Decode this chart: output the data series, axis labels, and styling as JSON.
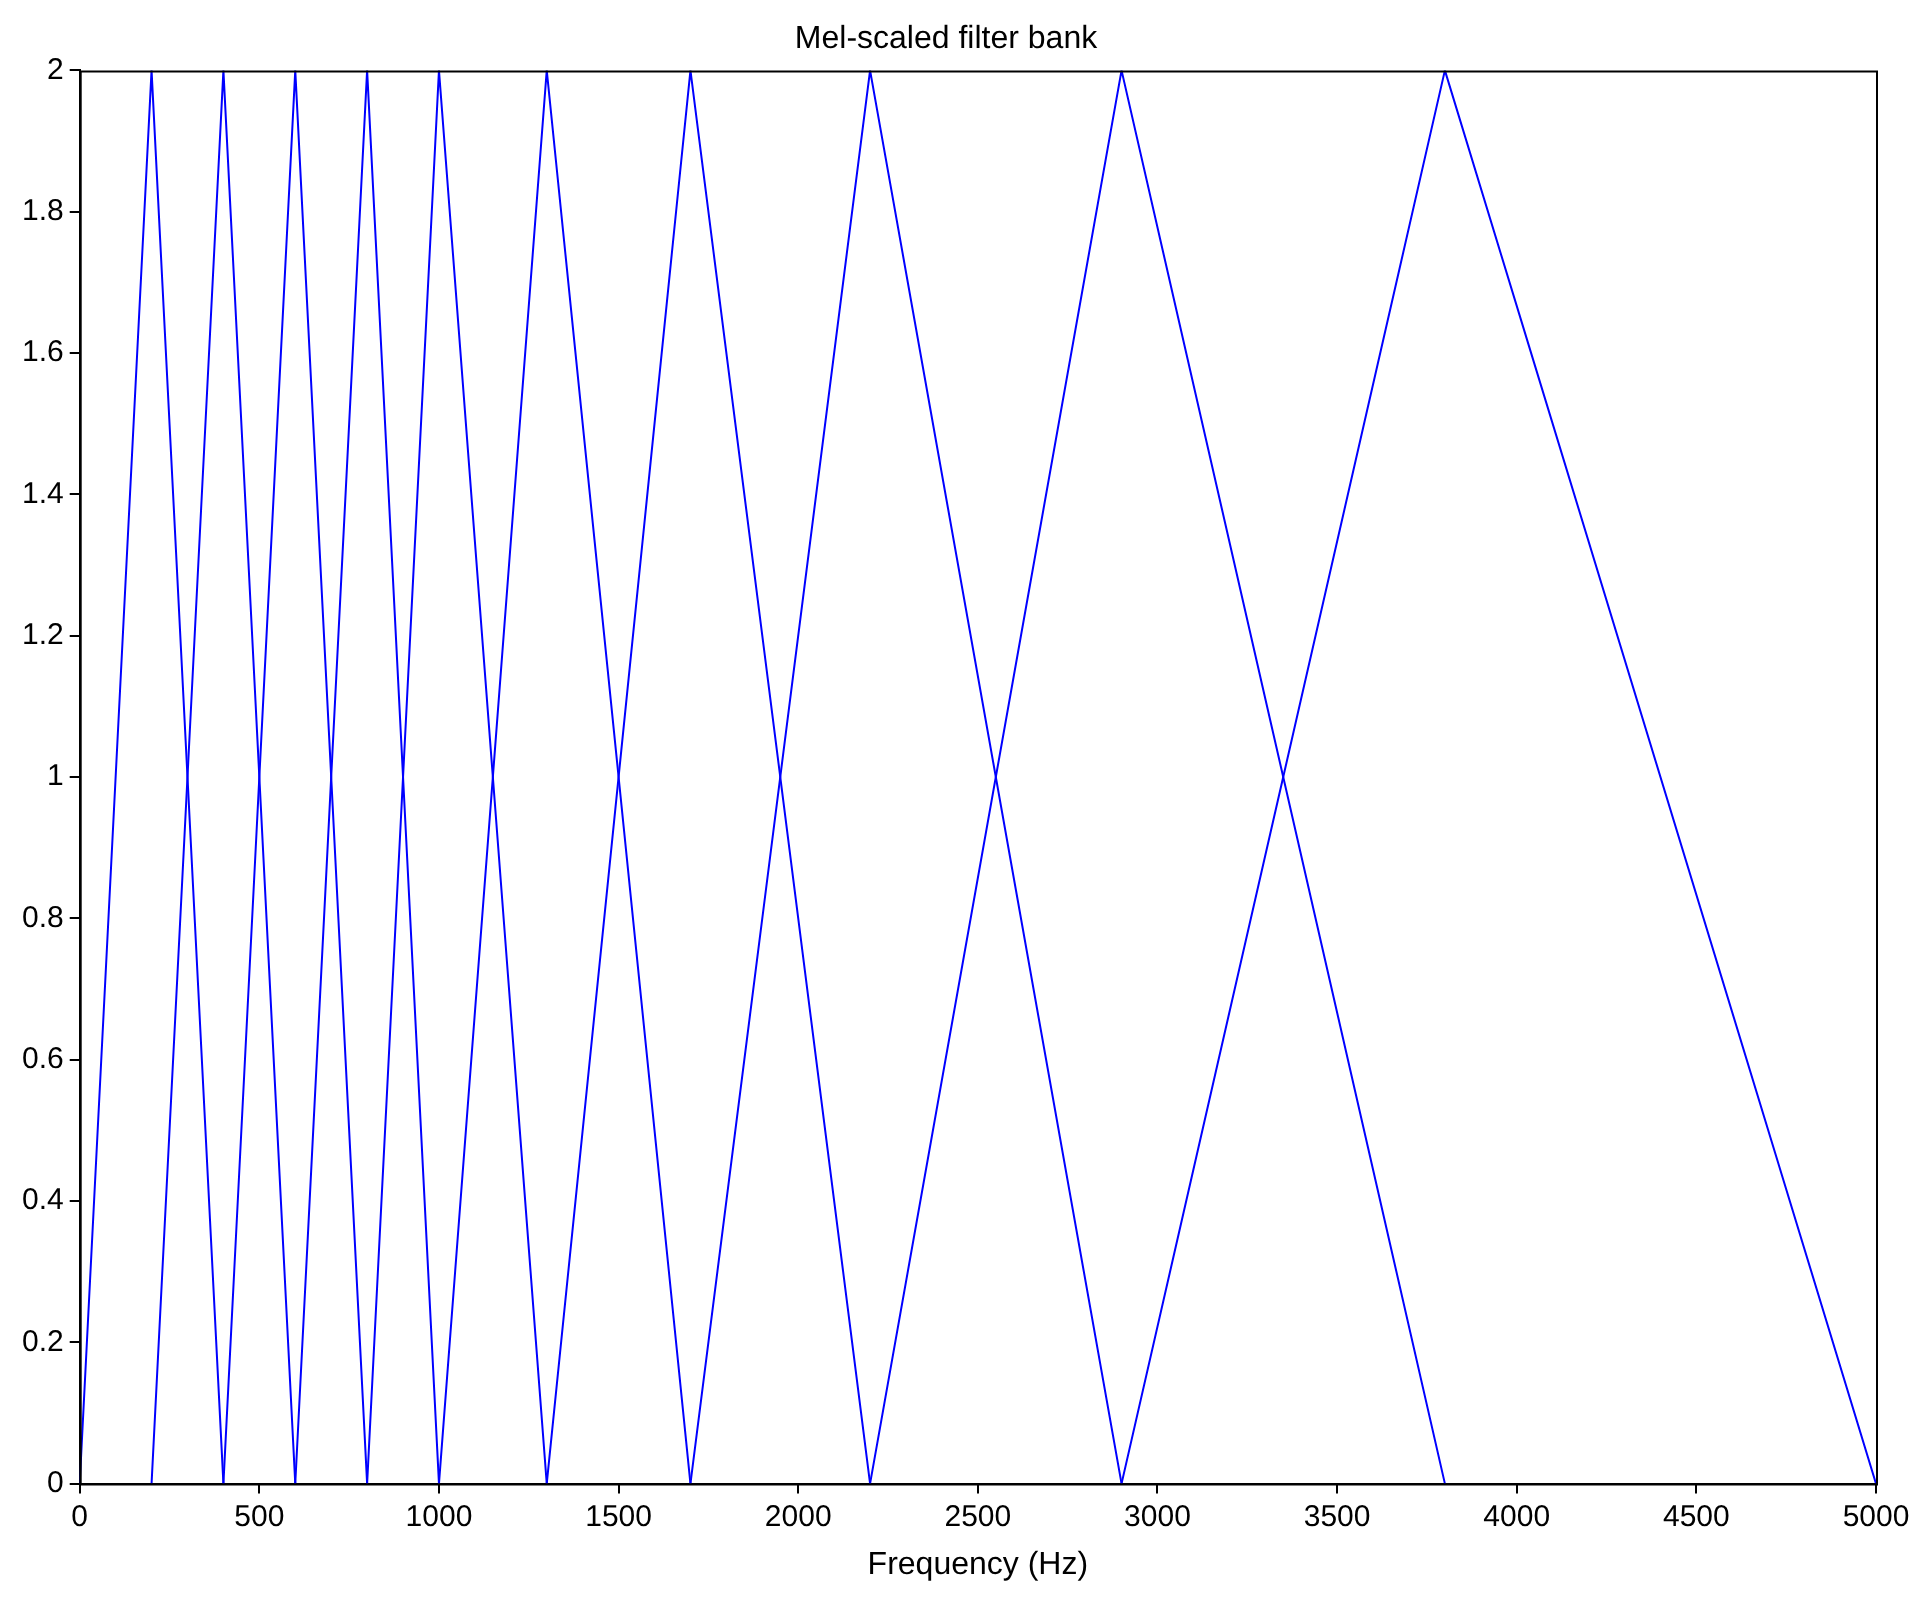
{
  "chart_data": {
    "type": "line",
    "title": "Mel-scaled filter bank",
    "xlabel": "Frequency (Hz)",
    "series": [
      {
        "color": "#0000ff",
        "x": [
          0,
          200,
          400
        ],
        "values": [
          0,
          2,
          0
        ]
      },
      {
        "color": "#0000ff",
        "x": [
          200,
          400,
          600
        ],
        "values": [
          0,
          2,
          0
        ]
      },
      {
        "color": "#0000ff",
        "x": [
          400,
          600,
          800
        ],
        "values": [
          0,
          2,
          0
        ]
      },
      {
        "color": "#0000ff",
        "x": [
          600,
          800,
          1000
        ],
        "values": [
          0,
          2,
          0
        ]
      },
      {
        "color": "#0000ff",
        "x": [
          800,
          1000,
          1300
        ],
        "values": [
          0,
          2,
          0
        ]
      },
      {
        "color": "#0000ff",
        "x": [
          1000,
          1300,
          1700
        ],
        "values": [
          0,
          2,
          0
        ]
      },
      {
        "color": "#0000ff",
        "x": [
          1300,
          1700,
          2200
        ],
        "values": [
          0,
          2,
          0
        ]
      },
      {
        "color": "#0000ff",
        "x": [
          1700,
          2200,
          2900
        ],
        "values": [
          0,
          2,
          0
        ]
      },
      {
        "color": "#0000ff",
        "x": [
          2200,
          2900,
          3800
        ],
        "values": [
          0,
          2,
          0
        ]
      },
      {
        "color": "#0000ff",
        "x": [
          2900,
          3800,
          5000
        ],
        "values": [
          0,
          2,
          0
        ]
      }
    ],
    "xlim": [
      0,
      5000
    ],
    "xticks": [
      0,
      500,
      1000,
      1500,
      2000,
      2500,
      3000,
      3500,
      4000,
      4500,
      5000
    ],
    "ylim": [
      0,
      2
    ],
    "yticks": [
      0,
      0.2,
      0.4,
      0.6,
      0.8,
      1,
      1.2,
      1.4,
      1.6,
      1.8,
      2
    ],
    "grid": false,
    "legend": false,
    "marker": "none",
    "line_style": "solid"
  }
}
